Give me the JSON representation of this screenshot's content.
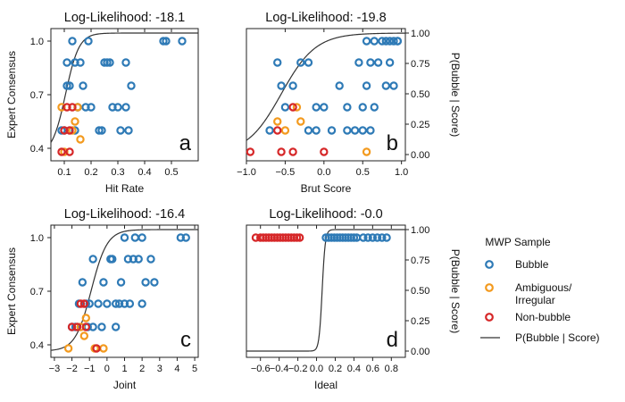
{
  "chart_data": [
    {
      "type": "scatter",
      "panel_label": "a",
      "title": "Log-Likelihood: -18.1",
      "xlabel": "Hit Rate",
      "ylabel": "Expert Consensus",
      "y2label": "",
      "xlim": [
        0.05,
        0.6
      ],
      "xticks": [
        0.1,
        0.2,
        0.3,
        0.4,
        0.5
      ],
      "xtick_labels": [
        "0.1",
        "0.2",
        "0.3",
        "0.4",
        "0.5"
      ],
      "ylim": [
        0.33,
        1.07
      ],
      "yticks": [
        0.4,
        0.7,
        1.0
      ],
      "ytick_labels": [
        "0.4",
        "0.7",
        "1.0"
      ],
      "y2ticks": [],
      "y2tick_labels": [],
      "curve": {
        "type": "logistic",
        "k": 40,
        "x0": 0.105
      },
      "series": [
        {
          "name": "Bubble",
          "points": [
            [
              0.11,
              0.75
            ],
            [
              0.09,
              0.5
            ],
            [
              0.1,
              0.5
            ],
            [
              0.14,
              0.88
            ],
            [
              0.12,
              0.75
            ],
            [
              0.15,
              0.63
            ],
            [
              0.16,
              0.88
            ],
            [
              0.19,
              1.0
            ],
            [
              0.13,
              1.0
            ],
            [
              0.18,
              0.63
            ],
            [
              0.2,
              0.63
            ],
            [
              0.24,
              0.5
            ],
            [
              0.25,
              0.88
            ],
            [
              0.26,
              0.88
            ],
            [
              0.27,
              0.88
            ],
            [
              0.28,
              0.63
            ],
            [
              0.3,
              0.63
            ],
            [
              0.31,
              0.5
            ],
            [
              0.33,
              0.88
            ],
            [
              0.35,
              0.75
            ],
            [
              0.33,
              0.63
            ],
            [
              0.34,
              0.5
            ],
            [
              0.48,
              1.0
            ],
            [
              0.47,
              1.0
            ],
            [
              0.54,
              1.0
            ],
            [
              0.17,
              0.75
            ],
            [
              0.14,
              0.5
            ],
            [
              0.23,
              0.5
            ],
            [
              0.11,
              0.88
            ],
            [
              0.15,
              0.63
            ]
          ]
        },
        {
          "name": "Ambiguous/Irregular",
          "points": [
            [
              0.09,
              0.63
            ],
            [
              0.14,
              0.55
            ],
            [
              0.13,
              0.5
            ],
            [
              0.15,
              0.63
            ],
            [
              0.16,
              0.45
            ],
            [
              0.1,
              0.38
            ]
          ]
        },
        {
          "name": "Non-bubble",
          "points": [
            [
              0.09,
              0.38
            ],
            [
              0.12,
              0.38
            ],
            [
              0.11,
              0.63
            ],
            [
              0.13,
              0.63
            ],
            [
              0.1,
              0.5
            ],
            [
              0.12,
              0.5
            ]
          ]
        }
      ]
    },
    {
      "type": "scatter",
      "panel_label": "b",
      "title": "Log-Likelihood: -19.8",
      "xlabel": "Brut Score",
      "ylabel": "",
      "y2label": "P(Bubble | Score)",
      "xlim": [
        -1.0,
        1.05
      ],
      "xticks": [
        -1.0,
        -0.5,
        0.0,
        0.5,
        1.0
      ],
      "xtick_labels": [
        "−1.0",
        "−0.5",
        "0.0",
        "0.5",
        "1.0"
      ],
      "ylim": [
        0.33,
        1.07
      ],
      "yticks": [],
      "ytick_labels": [],
      "y2ticks": [
        0.0,
        0.25,
        0.5,
        0.75,
        1.0
      ],
      "y2tick_labels": [
        "0.00",
        "0.25",
        "0.50",
        "0.75",
        "1.00"
      ],
      "curve": {
        "type": "logistic",
        "k": 4.5,
        "x0": -0.55
      },
      "series": [
        {
          "name": "Bubble",
          "points": [
            [
              -0.6,
              0.88
            ],
            [
              -0.55,
              0.75
            ],
            [
              -0.7,
              0.5
            ],
            [
              -0.5,
              0.63
            ],
            [
              -0.4,
              0.75
            ],
            [
              -0.3,
              0.88
            ],
            [
              -0.2,
              0.88
            ],
            [
              -0.1,
              0.63
            ],
            [
              0.0,
              0.63
            ],
            [
              0.1,
              0.5
            ],
            [
              0.2,
              0.75
            ],
            [
              0.3,
              0.63
            ],
            [
              0.4,
              0.5
            ],
            [
              0.5,
              0.63
            ],
            [
              0.55,
              0.75
            ],
            [
              0.6,
              0.88
            ],
            [
              0.65,
              1.0
            ],
            [
              0.7,
              0.88
            ],
            [
              0.75,
              1.0
            ],
            [
              0.8,
              1.0
            ],
            [
              0.85,
              1.0
            ],
            [
              0.9,
              1.0
            ],
            [
              0.95,
              1.0
            ],
            [
              0.55,
              1.0
            ],
            [
              0.6,
              0.5
            ],
            [
              0.65,
              0.63
            ],
            [
              0.8,
              0.75
            ],
            [
              0.85,
              0.88
            ],
            [
              0.9,
              0.75
            ],
            [
              -0.2,
              0.5
            ],
            [
              -0.1,
              0.5
            ],
            [
              0.3,
              0.5
            ],
            [
              0.5,
              0.5
            ],
            [
              0.45,
              0.88
            ],
            [
              0.95,
              1.0
            ]
          ]
        },
        {
          "name": "Ambiguous/Irregular",
          "points": [
            [
              -0.6,
              0.55
            ],
            [
              -0.5,
              0.5
            ],
            [
              -0.35,
              0.63
            ],
            [
              -0.3,
              0.55
            ],
            [
              0.55,
              0.38
            ]
          ]
        },
        {
          "name": "Non-bubble",
          "points": [
            [
              -0.95,
              0.38
            ],
            [
              -0.6,
              0.5
            ],
            [
              -0.55,
              0.38
            ],
            [
              -0.4,
              0.38
            ],
            [
              -0.4,
              0.63
            ],
            [
              0.0,
              0.38
            ]
          ]
        }
      ]
    },
    {
      "type": "scatter",
      "panel_label": "c",
      "title": "Log-Likelihood: -16.4",
      "xlabel": "Joint",
      "ylabel": "Expert Consensus",
      "y2label": "",
      "xlim": [
        -3.2,
        5.2
      ],
      "xticks": [
        -3,
        -2,
        -1,
        0,
        1,
        2,
        3,
        4,
        5
      ],
      "xtick_labels": [
        "−3",
        "−2",
        "−1",
        "0",
        "1",
        "2",
        "3",
        "4",
        "5"
      ],
      "ylim": [
        0.33,
        1.07
      ],
      "yticks": [
        0.4,
        0.7,
        1.0
      ],
      "ytick_labels": [
        "0.4",
        "0.7",
        "1.0"
      ],
      "y2ticks": [],
      "y2tick_labels": [],
      "curve": {
        "type": "logistic",
        "k": 2.2,
        "x0": -0.9
      },
      "series": [
        {
          "name": "Bubble",
          "points": [
            [
              -2.0,
              0.5
            ],
            [
              -1.8,
              0.5
            ],
            [
              -1.6,
              0.63
            ],
            [
              -1.4,
              0.75
            ],
            [
              -1.2,
              0.63
            ],
            [
              -1.0,
              0.63
            ],
            [
              -0.8,
              0.88
            ],
            [
              -1.1,
              0.5
            ],
            [
              -0.5,
              0.63
            ],
            [
              -0.3,
              0.5
            ],
            [
              -0.2,
              0.75
            ],
            [
              0.0,
              0.63
            ],
            [
              0.2,
              0.88
            ],
            [
              0.3,
              0.88
            ],
            [
              0.5,
              0.5
            ],
            [
              0.7,
              0.63
            ],
            [
              0.8,
              0.75
            ],
            [
              1.0,
              0.63
            ],
            [
              1.0,
              1.0
            ],
            [
              1.2,
              0.88
            ],
            [
              1.3,
              0.63
            ],
            [
              1.5,
              0.88
            ],
            [
              1.6,
              1.0
            ],
            [
              1.8,
              0.88
            ],
            [
              2.0,
              1.0
            ],
            [
              2.2,
              0.75
            ],
            [
              2.5,
              0.88
            ],
            [
              2.7,
              0.75
            ],
            [
              4.2,
              1.0
            ],
            [
              4.5,
              1.0
            ],
            [
              0.5,
              0.63
            ],
            [
              -0.8,
              0.5
            ],
            [
              2.0,
              0.63
            ]
          ]
        },
        {
          "name": "Ambiguous/Irregular",
          "points": [
            [
              -1.5,
              0.5
            ],
            [
              -1.3,
              0.45
            ],
            [
              -1.2,
              0.55
            ],
            [
              -0.7,
              0.38
            ],
            [
              -0.2,
              0.38
            ],
            [
              -2.2,
              0.38
            ]
          ]
        },
        {
          "name": "Non-bubble",
          "points": [
            [
              -1.5,
              0.63
            ],
            [
              -1.3,
              0.63
            ],
            [
              -1.7,
              0.5
            ],
            [
              -2.0,
              0.5
            ],
            [
              -1.2,
              0.5
            ],
            [
              -0.6,
              0.38
            ]
          ]
        }
      ]
    },
    {
      "type": "scatter",
      "panel_label": "d",
      "title": "Log-Likelihood: -0.0",
      "xlabel": "Ideal",
      "ylabel": "",
      "y2label": "P(Bubble | Score)",
      "xlim": [
        -0.75,
        0.95
      ],
      "xticks": [
        -0.6,
        -0.4,
        -0.2,
        0.0,
        0.2,
        0.4,
        0.6,
        0.8
      ],
      "xtick_labels": [
        "−0.6",
        "−0.4",
        "−0.2",
        "0.0",
        "0.2",
        "0.4",
        "0.6",
        "0.8"
      ],
      "ylim": [
        0.33,
        1.07
      ],
      "yticks": [],
      "ytick_labels": [],
      "y2ticks": [
        0.0,
        0.25,
        0.5,
        0.75,
        1.0
      ],
      "y2tick_labels": [
        "0.00",
        "0.25",
        "0.50",
        "0.75",
        "1.00"
      ],
      "curve": {
        "type": "logistic",
        "k": 60,
        "x0": 0.06
      },
      "series": [
        {
          "name": "Bubble",
          "points": [
            [
              0.1,
              1.0
            ],
            [
              0.13,
              1.0
            ],
            [
              0.16,
              1.0
            ],
            [
              0.19,
              1.0
            ],
            [
              0.22,
              1.0
            ],
            [
              0.25,
              1.0
            ],
            [
              0.28,
              1.0
            ],
            [
              0.31,
              1.0
            ],
            [
              0.34,
              1.0
            ],
            [
              0.37,
              1.0
            ],
            [
              0.4,
              1.0
            ],
            [
              0.43,
              1.0
            ],
            [
              0.5,
              1.0
            ],
            [
              0.55,
              1.0
            ],
            [
              0.6,
              1.0
            ],
            [
              0.65,
              1.0
            ],
            [
              0.7,
              1.0
            ],
            [
              0.75,
              1.0
            ]
          ]
        },
        {
          "name": "Ambiguous/Irregular",
          "points": []
        },
        {
          "name": "Non-bubble",
          "points": [
            [
              -0.65,
              1.0
            ],
            [
              -0.6,
              1.0
            ],
            [
              -0.57,
              1.0
            ],
            [
              -0.54,
              1.0
            ],
            [
              -0.51,
              1.0
            ],
            [
              -0.48,
              1.0
            ],
            [
              -0.45,
              1.0
            ],
            [
              -0.42,
              1.0
            ],
            [
              -0.39,
              1.0
            ],
            [
              -0.36,
              1.0
            ],
            [
              -0.33,
              1.0
            ],
            [
              -0.3,
              1.0
            ],
            [
              -0.27,
              1.0
            ],
            [
              -0.24,
              1.0
            ],
            [
              -0.21,
              1.0
            ],
            [
              -0.18,
              1.0
            ]
          ]
        }
      ]
    }
  ],
  "legend": {
    "title": "MWP Sample",
    "items": [
      {
        "label": "Bubble",
        "kind": "marker",
        "color": "#2e7ab6"
      },
      {
        "label": "Ambiguous/",
        "label2": "Irregular",
        "kind": "marker",
        "color": "#f39a1e"
      },
      {
        "label": "Non-bubble",
        "kind": "marker",
        "color": "#d62728"
      },
      {
        "label": "P(Bubble | Score)",
        "kind": "line",
        "color": "#333333"
      }
    ]
  },
  "colors": {
    "Bubble": "#2e7ab6",
    "Ambiguous/Irregular": "#f39a1e",
    "Non-bubble": "#d62728",
    "curve": "#333333"
  }
}
